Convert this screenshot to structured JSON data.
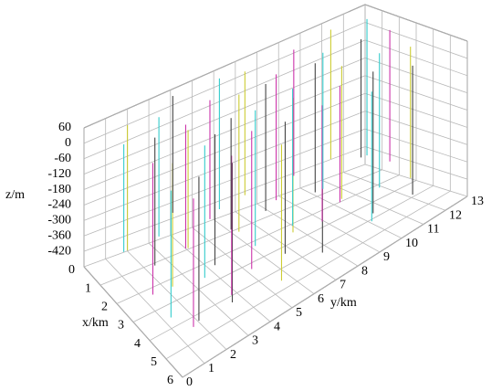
{
  "chart_data": {
    "type": "well3d",
    "x_label": "x/km",
    "y_label": "y/km",
    "z_label": "z/m",
    "xlim": [
      0,
      6
    ],
    "ylim": [
      0,
      13
    ],
    "zlim": [
      -480,
      60
    ],
    "xticks": [
      0,
      1,
      2,
      3,
      4,
      5,
      6
    ],
    "yticks": [
      0,
      1,
      2,
      3,
      4,
      5,
      6,
      7,
      8,
      9,
      10,
      11,
      12,
      13
    ],
    "zticks": [
      60,
      0,
      -60,
      -120,
      -180,
      -240,
      -300,
      -360,
      -420
    ],
    "grid": true,
    "grid_color": "#b8b8b8",
    "wells": {
      "x": [
        5.6,
        5.0,
        4.5,
        3.8,
        3.0,
        2.2,
        1.5,
        0.8,
        5.3,
        4.6,
        3.9,
        3.2,
        2.5,
        1.7,
        1.0,
        0.4,
        5.5,
        4.8,
        4.1,
        3.4,
        2.6,
        1.9,
        1.2,
        0.6,
        5.2,
        4.4,
        3.7,
        2.9,
        2.2,
        1.4,
        0.7,
        5.4,
        4.7,
        3.9,
        3.1,
        2.3,
        1.6,
        0.9,
        5.1,
        4.2,
        3.4,
        2.6,
        1.8,
        1.0,
        0.4
      ],
      "y": [
        0.8,
        1.5,
        0.6,
        1.2,
        0.9,
        1.6,
        0.7,
        1.4,
        2.8,
        3.3,
        2.6,
        3.6,
        2.9,
        3.4,
        2.7,
        3.8,
        4.9,
        5.6,
        4.6,
        5.3,
        4.8,
        5.7,
        4.9,
        5.8,
        7.0,
        7.6,
        6.8,
        7.4,
        6.7,
        7.8,
        6.9,
        9.1,
        9.7,
        8.8,
        9.5,
        8.9,
        9.8,
        9.0,
        11.2,
        11.8,
        11.0,
        12.1,
        11.4,
        12.3,
        11.1
      ],
      "z_top": [
        20,
        40,
        10,
        50,
        30,
        60,
        40,
        55,
        45,
        25,
        60,
        35,
        50,
        20,
        45,
        60,
        30,
        55,
        40,
        60,
        25,
        50,
        35,
        60,
        45,
        20,
        55,
        40,
        60,
        30,
        50,
        35,
        60,
        25,
        45,
        55,
        40,
        60,
        30,
        50,
        40,
        60,
        35,
        55,
        45
      ],
      "z_bottom": [
        -380,
        -420,
        -400,
        -360,
        -420,
        -390,
        -350,
        -410,
        -400,
        -430,
        -380,
        -410,
        -360,
        -420,
        -390,
        -370,
        -410,
        -380,
        -420,
        -400,
        -360,
        -430,
        -390,
        -410,
        -420,
        -370,
        -400,
        -430,
        -380,
        -410,
        -390,
        -400,
        -420,
        -370,
        -410,
        -390,
        -430,
        -380,
        -410,
        -400,
        -420,
        -390,
        -370,
        -410,
        -400
      ],
      "colors": [
        "#cc33aa",
        "#444444",
        "#33cccc",
        "#cccc33",
        "#cc33aa",
        "#444444",
        "#33cccc",
        "#cccc33",
        "#444444",
        "#cc33aa",
        "#33cccc",
        "#444444",
        "#cccc33",
        "#cc33aa",
        "#33cccc",
        "#444444",
        "#cccc33",
        "#444444",
        "#cc33aa",
        "#33cccc",
        "#444444",
        "#cccc33",
        "#cc33aa",
        "#33cccc",
        "#444444",
        "#cc33aa",
        "#cccc33",
        "#33cccc",
        "#444444",
        "#cc33aa",
        "#cccc33",
        "#33cccc",
        "#444444",
        "#cc33aa",
        "#cccc33",
        "#444444",
        "#33cccc",
        "#cc33aa",
        "#444444",
        "#cccc33",
        "#33cccc",
        "#cc33aa",
        "#444444",
        "#33cccc",
        "#cccc33"
      ]
    }
  }
}
